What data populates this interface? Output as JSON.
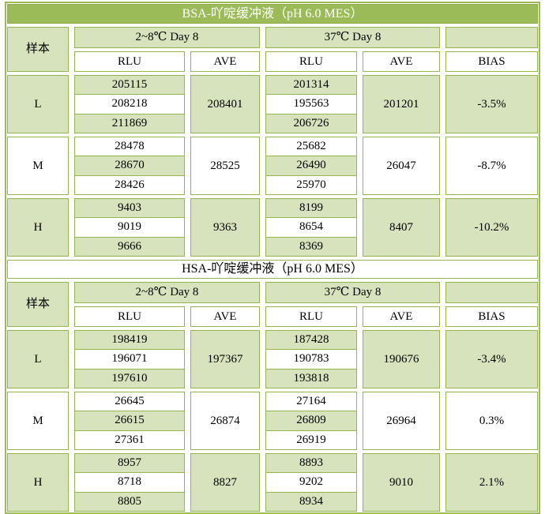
{
  "colors": {
    "title_bar_green": "#9bbb59",
    "cell_light_green": "#d6e3bc",
    "grid_border_olive": "#94b64e",
    "title_text": "#ffffff"
  },
  "table": {
    "sections": [
      {
        "title": "BSA-吖啶缓冲液（pH 6.0 MES）",
        "header": {
          "sample_label": "样本",
          "group1": "2~8℃  Day 8",
          "group2": "37℃  Day 8",
          "col_rlu": "RLU",
          "col_ave": "AVE",
          "col_bias": "BIAS"
        },
        "rows": [
          {
            "label": "L",
            "tone": "green",
            "rlu1": [
              "205115",
              "208218",
              "211869"
            ],
            "ave1": "208401",
            "rlu2": [
              "201314",
              "195563",
              "206726"
            ],
            "ave2": "201201",
            "bias": "-3.5%"
          },
          {
            "label": "M",
            "tone": "white",
            "rlu1": [
              "28478",
              "28670",
              "28426"
            ],
            "ave1": "28525",
            "rlu2": [
              "25682",
              "26490",
              "25970"
            ],
            "ave2": "26047",
            "bias": "-8.7%"
          },
          {
            "label": "H",
            "tone": "green",
            "rlu1": [
              "9403",
              "9019",
              "9666"
            ],
            "ave1": "9363",
            "rlu2": [
              "8199",
              "8654",
              "8369"
            ],
            "ave2": "8407",
            "bias": "-10.2%"
          }
        ]
      },
      {
        "title": "HSA-吖啶缓冲液（pH 6.0 MES）",
        "header": {
          "sample_label": "样本",
          "group1": "2~8℃  Day 8",
          "group2": "37℃  Day 8",
          "col_rlu": "RLU",
          "col_ave": "AVE",
          "col_bias": "BIAS"
        },
        "rows": [
          {
            "label": "L",
            "tone": "green",
            "rlu1": [
              "198419",
              "196071",
              "197610"
            ],
            "ave1": "197367",
            "rlu2": [
              "187428",
              "190783",
              "193818"
            ],
            "ave2": "190676",
            "bias": "-3.4%"
          },
          {
            "label": "M",
            "tone": "white",
            "rlu1": [
              "26645",
              "26615",
              "27361"
            ],
            "ave1": "26874",
            "rlu2": [
              "27164",
              "26809",
              "26919"
            ],
            "ave2": "26964",
            "bias": "0.3%"
          },
          {
            "label": "H",
            "tone": "green",
            "rlu1": [
              "8957",
              "8718",
              "8805"
            ],
            "ave1": "8827",
            "rlu2": [
              "8893",
              "9202",
              "8934"
            ],
            "ave2": "9010",
            "bias": "2.1%"
          }
        ]
      }
    ]
  }
}
